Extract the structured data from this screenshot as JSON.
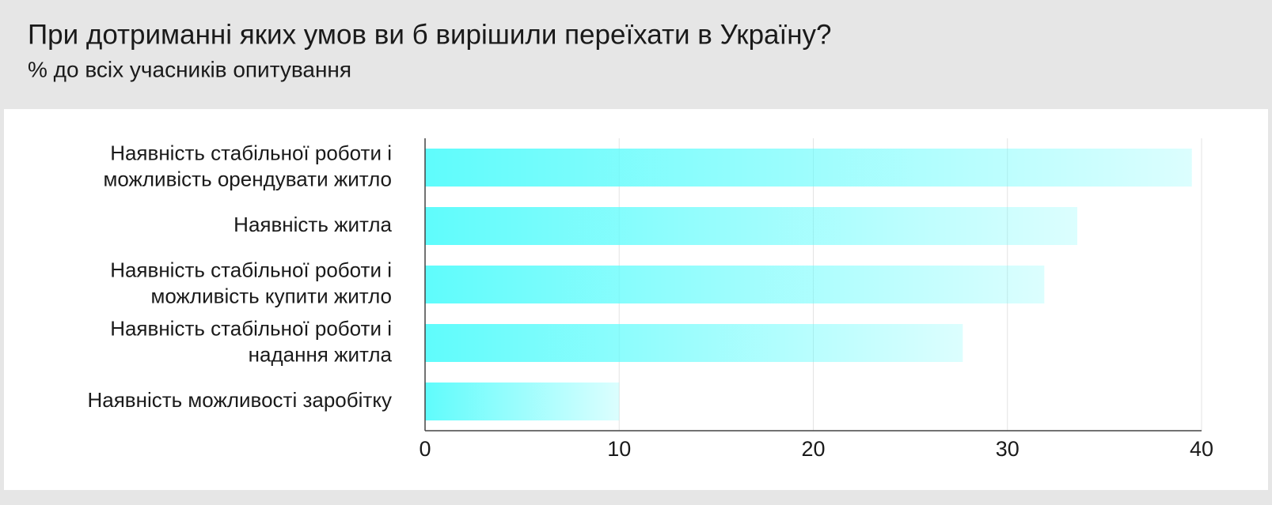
{
  "chart_data": {
    "type": "bar",
    "orientation": "horizontal",
    "title": "При дотриманні яких умов ви б вирішили переїхати в Україну?",
    "subtitle": "% до всіх учасників опитування",
    "categories": [
      [
        "Наявність стабільної роботи і",
        "можливість орендувати житло"
      ],
      [
        "Наявність житла"
      ],
      [
        "Наявність стабільної роботи і",
        "можливість купити житло"
      ],
      [
        "Наявність стабільної роботи і",
        "надання житла"
      ],
      [
        "Наявність можливості заробітку"
      ]
    ],
    "values": [
      39.5,
      33.6,
      31.9,
      27.7,
      10.0
    ],
    "color": "#5ffcfc",
    "xlim": [
      0,
      40
    ],
    "xticks": [
      0,
      10,
      20,
      30,
      40
    ],
    "grid": true
  }
}
